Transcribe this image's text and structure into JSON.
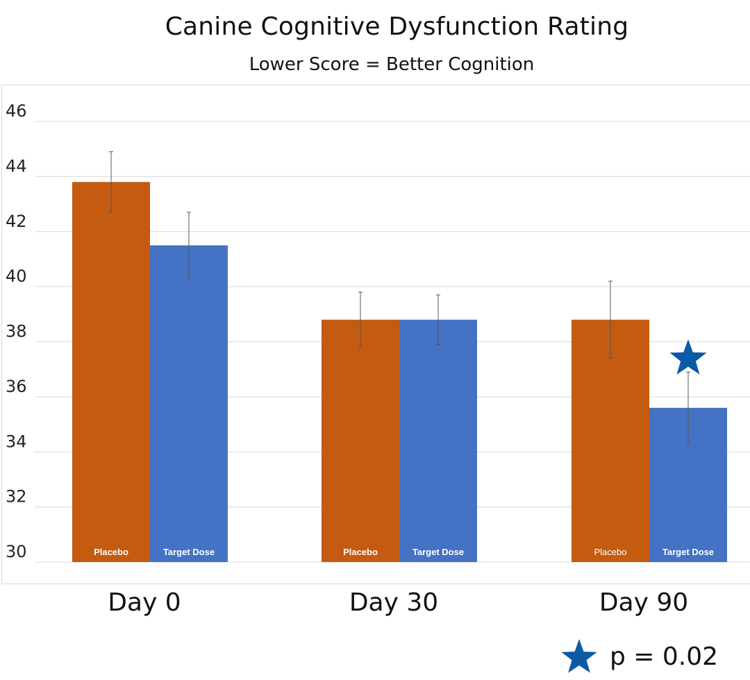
{
  "chart_data": {
    "type": "bar",
    "title": "Canine Cognitive Dysfunction Rating",
    "subtitle": "Lower Score = Better Cognition",
    "categories": [
      "Day 0",
      "Day 30",
      "Day 90"
    ],
    "series": [
      {
        "name": "Placebo",
        "color": "#C55A11",
        "values": [
          43.8,
          38.8,
          38.8
        ],
        "error_low": [
          42.7,
          37.8,
          37.4
        ],
        "error_high": [
          44.9,
          39.8,
          40.2
        ],
        "bar_labels": [
          "Placebo",
          "Placebo",
          "Placebo"
        ]
      },
      {
        "name": "Target Dose",
        "color": "#4472C4",
        "values": [
          41.5,
          38.8,
          35.6
        ],
        "error_low": [
          40.3,
          37.9,
          34.3
        ],
        "error_high": [
          42.7,
          39.7,
          36.9
        ],
        "bar_labels": [
          "Target Dose",
          "Target Dose",
          "Target Dose"
        ]
      }
    ],
    "ylim": [
      30,
      46
    ],
    "yticks": [
      30,
      32,
      34,
      36,
      38,
      40,
      42,
      44,
      46
    ],
    "grid": true,
    "significance": {
      "marker": "star",
      "marker_color": "#0B5AA6",
      "category": "Day 90",
      "series": "Target Dose",
      "legend_text": "p = 0.02"
    }
  }
}
